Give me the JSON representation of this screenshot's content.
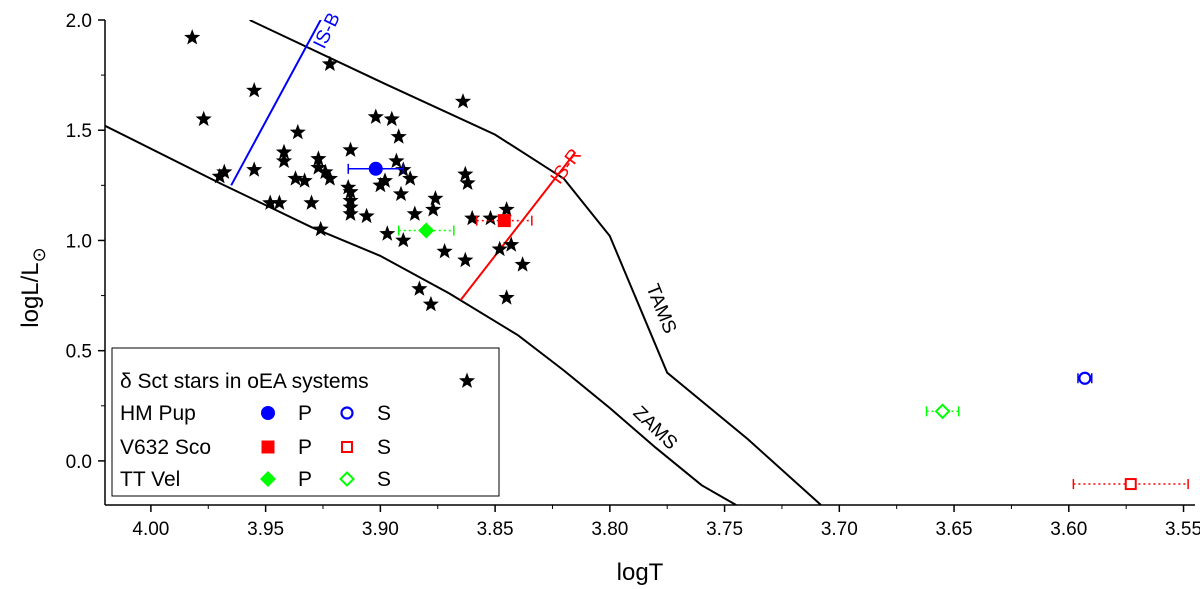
{
  "chart_data": {
    "type": "scatter",
    "title": "",
    "xlabel": "logT",
    "ylabel": "logL/L",
    "ylabel_symbol": "⊙",
    "xlim": [
      4.02,
      3.545
    ],
    "ylim": [
      -0.2,
      2.0
    ],
    "x_reversed": true,
    "grid": false,
    "x_ticks": [
      4.0,
      3.95,
      3.9,
      3.85,
      3.8,
      3.75,
      3.7,
      3.65,
      3.6,
      3.55
    ],
    "x_tick_labels": [
      "4.00",
      "3.95",
      "3.90",
      "3.85",
      "3.80",
      "3.75",
      "3.70",
      "3.65",
      "3.60",
      "3.55"
    ],
    "y_ticks": [
      0.0,
      0.5,
      1.0,
      1.5,
      2.0
    ],
    "y_tick_labels": [
      "0.0",
      "0.5",
      "1.0",
      "1.5",
      "2.0"
    ],
    "curves": [
      {
        "name": "ZAMS",
        "label": "ZAMS",
        "color": "#000000",
        "x": [
          4.02,
          3.97,
          3.93,
          3.9,
          3.87,
          3.84,
          3.82,
          3.8,
          3.78,
          3.76,
          3.745
        ],
        "y": [
          1.52,
          1.26,
          1.06,
          0.93,
          0.76,
          0.57,
          0.41,
          0.24,
          0.06,
          -0.11,
          -0.2
        ]
      },
      {
        "name": "TAMS",
        "label": "TAMS",
        "color": "#000000",
        "x": [
          3.957,
          3.9,
          3.85,
          3.82,
          3.8,
          3.775,
          3.74,
          3.708
        ],
        "y": [
          2.0,
          1.72,
          1.48,
          1.28,
          1.02,
          0.4,
          0.1,
          -0.2
        ]
      },
      {
        "name": "IS-B",
        "label": "IS-B",
        "color": "#0000ff",
        "x": [
          3.965,
          3.925
        ],
        "y": [
          1.25,
          2.02
        ]
      },
      {
        "name": "IS-R",
        "label": "IS-R",
        "color": "#ff0000",
        "x": [
          3.865,
          3.815
        ],
        "y": [
          0.73,
          1.4
        ]
      }
    ],
    "series": [
      {
        "name": "δ Sct stars in oEA systems",
        "marker": "star",
        "color": "#000000",
        "points": [
          [
            3.982,
            1.92
          ],
          [
            3.977,
            1.55
          ],
          [
            3.955,
            1.68
          ],
          [
            3.922,
            1.8
          ],
          [
            3.97,
            1.29
          ],
          [
            3.968,
            1.31
          ],
          [
            3.955,
            1.32
          ],
          [
            3.948,
            1.17
          ],
          [
            3.944,
            1.17
          ],
          [
            3.942,
            1.36
          ],
          [
            3.942,
            1.4
          ],
          [
            3.937,
            1.28
          ],
          [
            3.933,
            1.27
          ],
          [
            3.936,
            1.49
          ],
          [
            3.93,
            1.17
          ],
          [
            3.927,
            1.37
          ],
          [
            3.927,
            1.33
          ],
          [
            3.924,
            1.31
          ],
          [
            3.922,
            1.28
          ],
          [
            3.926,
            1.05
          ],
          [
            3.913,
            1.41
          ],
          [
            3.914,
            1.24
          ],
          [
            3.913,
            1.22
          ],
          [
            3.913,
            1.18
          ],
          [
            3.913,
            1.15
          ],
          [
            3.913,
            1.12
          ],
          [
            3.906,
            1.11
          ],
          [
            3.902,
            1.56
          ],
          [
            3.9,
            1.25
          ],
          [
            3.898,
            1.27
          ],
          [
            3.895,
            1.55
          ],
          [
            3.892,
            1.47
          ],
          [
            3.893,
            1.36
          ],
          [
            3.89,
            1.32
          ],
          [
            3.891,
            1.21
          ],
          [
            3.887,
            1.28
          ],
          [
            3.897,
            1.03
          ],
          [
            3.89,
            1.0
          ],
          [
            3.885,
            1.12
          ],
          [
            3.877,
            1.14
          ],
          [
            3.876,
            1.19
          ],
          [
            3.872,
            0.95
          ],
          [
            3.863,
            0.91
          ],
          [
            3.864,
            1.63
          ],
          [
            3.863,
            1.3
          ],
          [
            3.862,
            1.26
          ],
          [
            3.86,
            1.1
          ],
          [
            3.852,
            1.1
          ],
          [
            3.845,
            1.14
          ],
          [
            3.848,
            0.96
          ],
          [
            3.843,
            0.98
          ],
          [
            3.838,
            0.89
          ],
          [
            3.845,
            0.74
          ],
          [
            3.883,
            0.78
          ],
          [
            3.878,
            0.71
          ]
        ]
      },
      {
        "name": "HM Pup P",
        "marker": "circle-filled",
        "color": "#0000ff",
        "points": [
          [
            3.902,
            1.325
          ]
        ],
        "xerr": 0.012
      },
      {
        "name": "HM Pup S",
        "marker": "circle-open",
        "color": "#0000ff",
        "points": [
          [
            3.593,
            0.375
          ]
        ],
        "xerr": 0.003
      },
      {
        "name": "V632 Sco P",
        "marker": "square-filled",
        "color": "#ff0000",
        "points": [
          [
            3.846,
            1.09
          ]
        ],
        "xerr": 0.012
      },
      {
        "name": "V632 Sco S",
        "marker": "square-open",
        "color": "#ff0000",
        "points": [
          [
            3.573,
            -0.105
          ]
        ],
        "xerr": 0.025
      },
      {
        "name": "TT Vel P",
        "marker": "diamond-filled",
        "color": "#00ff00",
        "points": [
          [
            3.88,
            1.045
          ]
        ],
        "xerr": 0.012
      },
      {
        "name": "TT Vel S",
        "marker": "diamond-open",
        "color": "#00ff00",
        "points": [
          [
            3.655,
            0.225
          ]
        ],
        "xerr": 0.007
      }
    ],
    "legend": {
      "placement": "bottom-left",
      "rows": [
        {
          "label": "δ Sct stars in oEA systems",
          "items": [
            {
              "marker": "star",
              "color": "#000000",
              "text": ""
            }
          ]
        },
        {
          "label": "HM Pup",
          "items": [
            {
              "marker": "circle-filled",
              "color": "#0000ff",
              "text": "P"
            },
            {
              "marker": "circle-open",
              "color": "#0000ff",
              "text": "S"
            }
          ]
        },
        {
          "label": "V632 Sco",
          "items": [
            {
              "marker": "square-filled",
              "color": "#ff0000",
              "text": "P"
            },
            {
              "marker": "square-open",
              "color": "#ff0000",
              "text": "S"
            }
          ]
        },
        {
          "label": "TT Vel",
          "items": [
            {
              "marker": "diamond-filled",
              "color": "#00ff00",
              "text": "P"
            },
            {
              "marker": "diamond-open",
              "color": "#00ff00",
              "text": "S"
            }
          ]
        }
      ]
    }
  }
}
